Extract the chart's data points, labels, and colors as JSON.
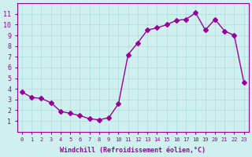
{
  "x": [
    0,
    1,
    2,
    3,
    4,
    5,
    6,
    7,
    8,
    9,
    10,
    11,
    12,
    13,
    14,
    15,
    16,
    17,
    18,
    19,
    20,
    21,
    22,
    23
  ],
  "y": [
    3.7,
    3.2,
    3.1,
    2.7,
    1.9,
    1.7,
    1.5,
    1.2,
    1.1,
    1.3,
    2.6,
    7.2,
    8.3,
    9.5,
    9.7,
    10.0,
    10.4,
    10.5,
    11.1,
    9.5,
    10.5,
    9.4,
    9.0,
    4.6
  ],
  "line_color": "#990099",
  "marker": "D",
  "marker_size": 3,
  "bg_color": "#d0f0f0",
  "grid_color": "#aadddd",
  "xlabel": "Windchill (Refroidissement éolien,°C)",
  "xlabel_color": "#990099",
  "tick_color": "#990099",
  "xlim": [
    -0.5,
    23.5
  ],
  "ylim": [
    0,
    12
  ],
  "yticks": [
    1,
    2,
    3,
    4,
    5,
    6,
    7,
    8,
    9,
    10,
    11
  ],
  "xticks": [
    0,
    1,
    2,
    3,
    4,
    5,
    6,
    7,
    8,
    9,
    10,
    11,
    12,
    13,
    14,
    15,
    16,
    17,
    18,
    19,
    20,
    21,
    22,
    23
  ]
}
